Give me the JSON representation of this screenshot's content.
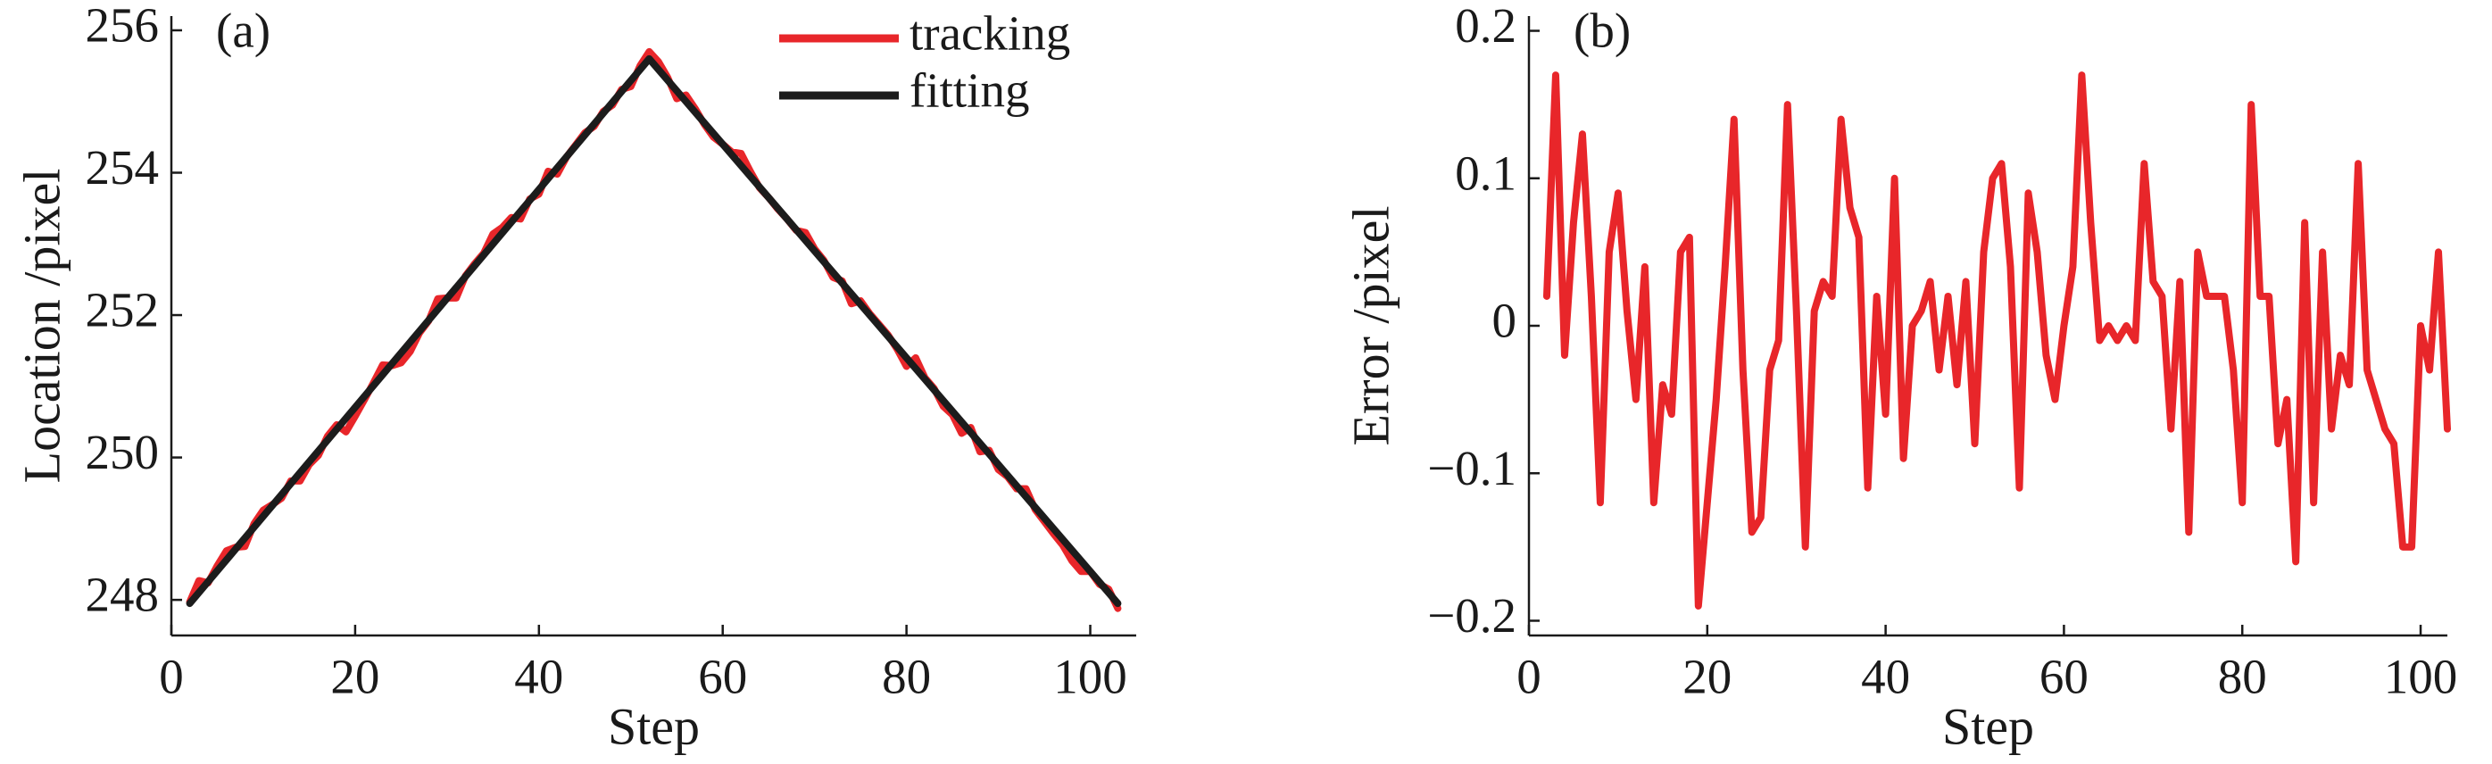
{
  "chart_data": [
    {
      "type": "line",
      "panel_label": "(a)",
      "x_label": "Step",
      "y_label": "Location /pixel",
      "x": [
        2,
        3,
        4,
        5,
        6,
        7,
        8,
        9,
        10,
        11,
        12,
        13,
        14,
        15,
        16,
        17,
        18,
        19,
        20,
        21,
        22,
        23,
        24,
        25,
        26,
        27,
        28,
        29,
        30,
        31,
        32,
        33,
        34,
        35,
        36,
        37,
        38,
        39,
        40,
        41,
        42,
        43,
        44,
        45,
        46,
        47,
        48,
        49,
        50,
        51,
        52,
        53,
        54,
        55,
        56,
        57,
        58,
        59,
        60,
        61,
        62,
        63,
        64,
        65,
        66,
        67,
        68,
        69,
        70,
        71,
        72,
        73,
        74,
        75,
        76,
        77,
        78,
        79,
        80,
        81,
        82,
        83,
        84,
        85,
        86,
        87,
        88,
        89,
        90,
        91,
        92,
        93,
        94,
        95,
        96,
        97,
        98,
        99,
        100,
        101,
        102,
        103
      ],
      "series": [
        {
          "name": "tracking",
          "color": "#e8262a",
          "values": [
            247.97,
            248.27,
            248.24,
            248.48,
            248.69,
            248.74,
            248.75,
            249.07,
            249.26,
            249.34,
            249.43,
            249.67,
            249.67,
            249.9,
            250.03,
            250.3,
            250.46,
            250.36,
            250.58,
            250.81,
            251.05,
            251.3,
            251.29,
            251.33,
            251.49,
            251.75,
            251.92,
            252.23,
            252.24,
            252.24,
            252.55,
            252.72,
            252.87,
            253.14,
            253.23,
            253.37,
            253.35,
            253.63,
            253.7,
            254.02,
            253.98,
            254.22,
            254.39,
            254.56,
            254.65,
            254.86,
            254.95,
            255.17,
            255.21,
            255.5,
            255.7,
            255.56,
            255.34,
            255.04,
            255.09,
            254.9,
            254.68,
            254.5,
            254.4,
            254.29,
            254.27,
            254.02,
            253.79,
            253.65,
            253.49,
            253.35,
            253.19,
            253.16,
            252.93,
            252.77,
            252.53,
            252.48,
            252.16,
            252.2,
            252.02,
            251.87,
            251.72,
            251.52,
            251.28,
            251.4,
            251.12,
            250.97,
            250.72,
            250.6,
            250.34,
            250.42,
            250.08,
            250.1,
            249.83,
            249.73,
            249.56,
            249.56,
            249.27,
            249.1,
            248.93,
            248.77,
            248.55,
            248.4,
            248.4,
            248.22,
            248.15,
            247.88
          ]
        },
        {
          "name": "fitting",
          "color": "#1c1c1c",
          "x": [
            2,
            52,
            103
          ],
          "values": [
            247.95,
            255.6,
            247.95
          ]
        }
      ],
      "xlim": [
        0,
        105
      ],
      "xticks": [
        0,
        20,
        40,
        60,
        80,
        100
      ],
      "ylim": [
        247.5,
        256.2
      ],
      "yticks": [
        248,
        250,
        252,
        254,
        256
      ],
      "legend": "upper right"
    },
    {
      "type": "line",
      "panel_label": "(b)",
      "x_label": "Step",
      "y_label": "Error /pixel",
      "x": [
        2,
        3,
        4,
        5,
        6,
        7,
        8,
        9,
        10,
        11,
        12,
        13,
        14,
        15,
        16,
        17,
        18,
        19,
        20,
        21,
        22,
        23,
        24,
        25,
        26,
        27,
        28,
        29,
        30,
        31,
        32,
        33,
        34,
        35,
        36,
        37,
        38,
        39,
        40,
        41,
        42,
        43,
        44,
        45,
        46,
        47,
        48,
        49,
        50,
        51,
        52,
        53,
        54,
        55,
        56,
        57,
        58,
        59,
        60,
        61,
        62,
        63,
        64,
        65,
        66,
        67,
        68,
        69,
        70,
        71,
        72,
        73,
        74,
        75,
        76,
        77,
        78,
        79,
        80,
        81,
        82,
        83,
        84,
        85,
        86,
        87,
        88,
        89,
        90,
        91,
        92,
        93,
        94,
        95,
        96,
        97,
        98,
        99,
        100,
        101,
        102,
        103
      ],
      "series": [
        {
          "color": "#e8262a",
          "values": [
            0.02,
            0.17,
            -0.02,
            0.07,
            0.13,
            0.02,
            -0.12,
            0.05,
            0.09,
            0.01,
            -0.05,
            0.04,
            -0.12,
            -0.04,
            -0.06,
            0.05,
            0.06,
            -0.19,
            -0.12,
            -0.05,
            0.04,
            0.14,
            -0.03,
            -0.14,
            -0.13,
            -0.03,
            -0.01,
            0.15,
            0.01,
            -0.15,
            0.01,
            0.03,
            0.02,
            0.14,
            0.08,
            0.06,
            -0.11,
            0.02,
            -0.06,
            0.1,
            -0.09,
            0,
            0.01,
            0.03,
            -0.03,
            0.02,
            -0.04,
            0.03,
            -0.08,
            0.05,
            0.1,
            0.11,
            0.04,
            -0.11,
            0.09,
            0.05,
            -0.02,
            -0.05,
            0,
            0.04,
            0.17,
            0.07,
            -0.01,
            0,
            -0.01,
            0,
            -0.01,
            0.11,
            0.03,
            0.02,
            -0.07,
            0.03,
            -0.14,
            0.05,
            0.02,
            0.02,
            0.02,
            -0.03,
            -0.12,
            0.15,
            0.02,
            0.02,
            -0.08,
            -0.05,
            -0.16,
            0.07,
            -0.12,
            0.05,
            -0.07,
            -0.02,
            -0.04,
            0.11,
            -0.03,
            -0.05,
            -0.07,
            -0.08,
            -0.15,
            -0.15,
            0,
            -0.03,
            0.05,
            -0.07
          ]
        }
      ],
      "xlim": [
        0,
        103
      ],
      "xticks": [
        0,
        20,
        40,
        60,
        80,
        100
      ],
      "ylim": [
        -0.21,
        0.21
      ],
      "yticks": [
        {
          "value": -0.2,
          "label": "−0.2"
        },
        {
          "value": -0.1,
          "label": "−0.1"
        },
        0,
        0.1,
        0.2
      ]
    }
  ]
}
